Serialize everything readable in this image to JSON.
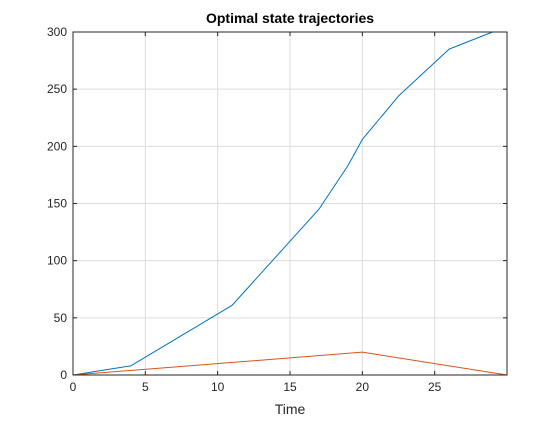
{
  "chart_data": {
    "type": "line",
    "title": "Optimal state trajectories",
    "xlabel": "Time",
    "ylabel": "",
    "xlim": [
      0,
      30
    ],
    "ylim": [
      0,
      300
    ],
    "xticks": [
      0,
      5,
      10,
      15,
      20,
      25
    ],
    "yticks": [
      0,
      50,
      100,
      150,
      200,
      250,
      300
    ],
    "grid": true,
    "legend": "none",
    "series": [
      {
        "color": "#0072BD",
        "x": [
          0,
          4,
          11,
          17,
          19,
          20,
          22.5,
          26,
          29,
          30
        ],
        "y": [
          0,
          8,
          61,
          145,
          183,
          206,
          244,
          285,
          300,
          300
        ]
      },
      {
        "color": "#D95319",
        "x": [
          0,
          20,
          30
        ],
        "y": [
          0,
          20,
          0
        ]
      }
    ]
  }
}
